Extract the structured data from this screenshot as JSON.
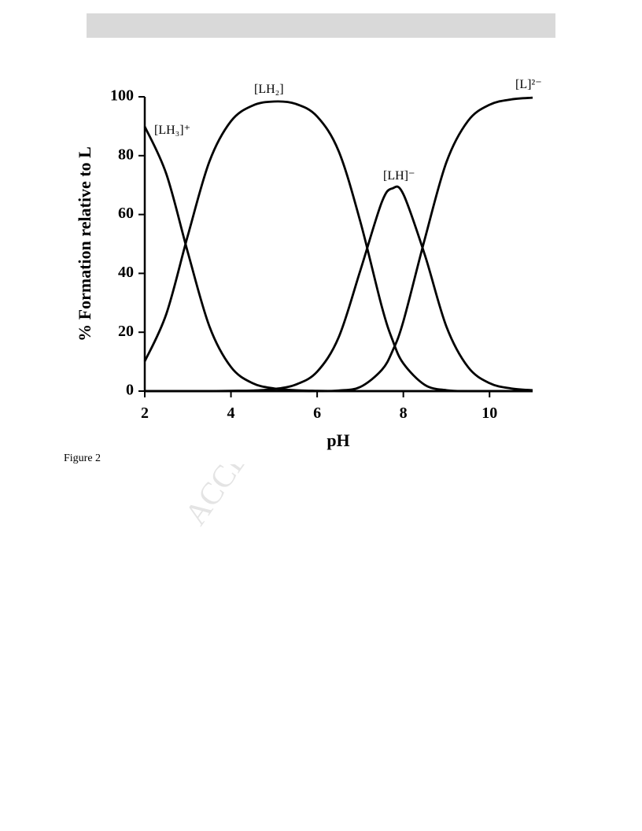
{
  "header": {
    "bar": ""
  },
  "watermark": "ACCEPTED MANUSCRIPT",
  "caption": "Figure 2",
  "chart_data": {
    "type": "line",
    "x_label": "pH",
    "y_label": "% Formation relative to L",
    "x": [
      2,
      2.5,
      3,
      3.5,
      4,
      4.5,
      5,
      5.5,
      6,
      6.5,
      7,
      7.5,
      7.75,
      8,
      8.5,
      9,
      9.5,
      10,
      10.5,
      11
    ],
    "series": [
      {
        "name": "[LH₃]⁺",
        "color": "#000000",
        "values": [
          89.9,
          73.8,
          47.1,
          22.0,
          8.2,
          2.7,
          0.9,
          0.3,
          0.1,
          0,
          0,
          0,
          0,
          0,
          0,
          0,
          0,
          0,
          0,
          0
        ]
      },
      {
        "name": "[LH₂]",
        "color": "#000000",
        "values": [
          10.1,
          26.2,
          52.9,
          78.0,
          91.7,
          97.0,
          98.4,
          97.6,
          93.3,
          81.5,
          57.7,
          28.7,
          17.3,
          9.4,
          2.1,
          0.3,
          0,
          0,
          0,
          0
        ]
      },
      {
        "name": "[LH]⁻",
        "color": "#000000",
        "values": [
          0,
          0,
          0,
          0,
          0.1,
          0.2,
          0.7,
          2.2,
          6.6,
          18.3,
          40.9,
          64.2,
          68.9,
          66.9,
          46.2,
          21.9,
          8.2,
          2.7,
          0.9,
          0.3
        ]
      },
      {
        "name": "[L]²⁻",
        "color": "#000000",
        "values": [
          0,
          0,
          0,
          0,
          0,
          0,
          0,
          0,
          0,
          0.2,
          1.4,
          7.2,
          13.7,
          23.7,
          51.8,
          77.8,
          91.8,
          97.3,
          99.1,
          99.7
        ]
      }
    ],
    "xlim": [
      2,
      11
    ],
    "xticks": [
      2,
      4,
      6,
      8,
      10
    ],
    "ylim": [
      0,
      100
    ],
    "yticks": [
      0,
      20,
      40,
      60,
      80,
      100
    ]
  }
}
